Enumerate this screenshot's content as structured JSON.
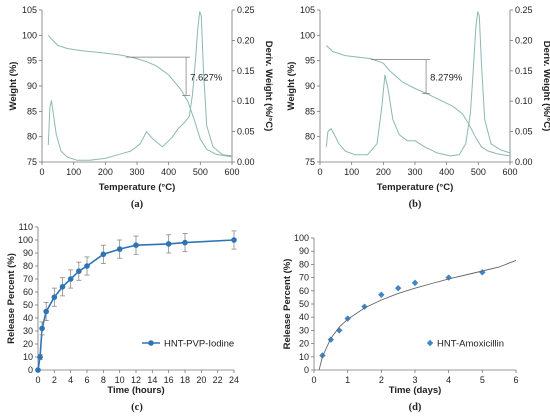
{
  "chart_data": [
    {
      "id": "a",
      "type": "line",
      "caption": "(a)",
      "xlabel": "Temperature (°C)",
      "ylabel": "Weight (%)",
      "y2label": "Deriv. Weight (%/°C)",
      "xlim": [
        0,
        600
      ],
      "ylim": [
        75,
        105
      ],
      "y2lim": [
        0,
        0.25
      ],
      "xticks": [
        "0",
        "100",
        "200",
        "300",
        "400",
        "500",
        "600"
      ],
      "yticks": [
        "75",
        "80",
        "85",
        "90",
        "95",
        "100",
        "105"
      ],
      "y2ticks": [
        "0.00",
        "0.05",
        "0.10",
        "0.15",
        "0.20",
        "0.25"
      ],
      "annotation": "7.627%",
      "annotation_range": [
        95.7,
        88.1
      ],
      "annotation_x": 455,
      "grid": false,
      "series": [
        {
          "axis": "left",
          "x": [
            20,
            30,
            50,
            80,
            120,
            150,
            200,
            250,
            300,
            330,
            360,
            400,
            440,
            460,
            480,
            500,
            520,
            550,
            600
          ],
          "y": [
            100.0,
            99.3,
            98.0,
            97.4,
            97.0,
            96.8,
            96.5,
            96.1,
            95.4,
            94.8,
            94.0,
            92.2,
            89.2,
            87.0,
            83.5,
            79.5,
            77.5,
            76.5,
            76.0
          ]
        },
        {
          "axis": "right",
          "x": [
            20,
            25,
            30,
            35,
            45,
            60,
            80,
            110,
            150,
            200,
            240,
            280,
            310,
            330,
            350,
            380,
            410,
            430,
            450,
            465,
            475,
            485,
            492,
            498,
            503,
            510,
            520,
            540,
            570,
            600
          ],
          "y": [
            0.028,
            0.09,
            0.101,
            0.082,
            0.045,
            0.018,
            0.008,
            0.003,
            0.003,
            0.006,
            0.012,
            0.018,
            0.03,
            0.05,
            0.038,
            0.025,
            0.04,
            0.055,
            0.065,
            0.075,
            0.11,
            0.17,
            0.22,
            0.247,
            0.24,
            0.15,
            0.06,
            0.025,
            0.012,
            0.01
          ]
        }
      ]
    },
    {
      "id": "b",
      "type": "line",
      "caption": "(b)",
      "xlabel": "Temperature (°C)",
      "ylabel": "Weight (%)",
      "y2label": "Deriv. Weight (%/°C)",
      "xlim": [
        0,
        600
      ],
      "ylim": [
        75,
        105
      ],
      "y2lim": [
        0,
        0.25
      ],
      "xticks": [
        "0",
        "100",
        "200",
        "300",
        "400",
        "500",
        "600"
      ],
      "yticks": [
        "75",
        "80",
        "85",
        "90",
        "95",
        "100",
        "105"
      ],
      "y2ticks": [
        "0.00",
        "0.05",
        "0.10",
        "0.15",
        "0.20",
        "0.25"
      ],
      "annotation": "8.279%",
      "annotation_range": [
        95.2,
        88.5
      ],
      "annotation_x": 335,
      "grid": false,
      "series": [
        {
          "axis": "left",
          "x": [
            20,
            40,
            80,
            120,
            160,
            200,
            220,
            260,
            300,
            340,
            380,
            420,
            450,
            470,
            490,
            510,
            530,
            560,
            600
          ],
          "y": [
            98.0,
            96.8,
            96.0,
            95.7,
            95.4,
            94.5,
            93.0,
            90.8,
            89.5,
            88.4,
            87.2,
            86.0,
            84.5,
            82.5,
            80.0,
            78.0,
            77.2,
            76.6,
            76.2
          ]
        },
        {
          "axis": "right",
          "x": [
            20,
            25,
            35,
            45,
            60,
            80,
            110,
            150,
            180,
            195,
            205,
            215,
            230,
            250,
            275,
            300,
            330,
            370,
            410,
            440,
            460,
            475,
            485,
            492,
            498,
            503,
            510,
            520,
            540,
            570,
            600
          ],
          "y": [
            0.025,
            0.05,
            0.055,
            0.045,
            0.03,
            0.018,
            0.012,
            0.012,
            0.03,
            0.09,
            0.143,
            0.12,
            0.07,
            0.045,
            0.035,
            0.035,
            0.025,
            0.015,
            0.01,
            0.012,
            0.03,
            0.08,
            0.16,
            0.22,
            0.247,
            0.24,
            0.16,
            0.07,
            0.03,
            0.02,
            0.015
          ]
        }
      ]
    },
    {
      "id": "c",
      "type": "line",
      "caption": "(c)",
      "xlabel": "Time (hours)",
      "ylabel": "Release Percent (%)",
      "xlim": [
        0,
        24
      ],
      "ylim": [
        0,
        110
      ],
      "xticks": [
        "0",
        "2",
        "4",
        "6",
        "8",
        "10",
        "12",
        "14",
        "16",
        "18",
        "20",
        "22",
        "24"
      ],
      "yticks": [
        "0",
        "10",
        "20",
        "30",
        "40",
        "50",
        "60",
        "70",
        "80",
        "90",
        "100",
        "110"
      ],
      "legend": "HNT-PVP-Iodine",
      "legend_position": "center-right",
      "grid": false,
      "series": [
        {
          "name": "HNT-PVP-Iodine",
          "x": [
            0,
            0.25,
            0.5,
            1,
            2,
            3,
            4,
            5,
            6,
            8,
            10,
            12,
            16,
            18,
            24
          ],
          "y": [
            0,
            10,
            32,
            45,
            56,
            64,
            70,
            76,
            80,
            89,
            93,
            96,
            97,
            98,
            100
          ],
          "err": [
            0,
            2,
            5,
            7,
            7,
            7,
            7,
            7,
            7,
            7,
            7,
            7,
            7,
            7,
            7
          ]
        }
      ]
    },
    {
      "id": "d",
      "type": "scatter",
      "caption": "(d)",
      "xlabel": "Time (days)",
      "ylabel": "Release Percent (%)",
      "xlim": [
        0,
        6
      ],
      "ylim": [
        0,
        100
      ],
      "xticks": [
        "0",
        "1",
        "2",
        "3",
        "4",
        "5",
        "6"
      ],
      "yticks": [
        "0",
        "10",
        "20",
        "30",
        "40",
        "50",
        "60",
        "70",
        "80",
        "90",
        "100"
      ],
      "legend": "HNT-Amoxicillin",
      "legend_position": "bottom-right",
      "grid": false,
      "series": [
        {
          "name": "HNT-Amoxicillin",
          "x": [
            0.25,
            0.5,
            0.75,
            1,
            1.5,
            2,
            2.5,
            3,
            4,
            5
          ],
          "y": [
            11,
            23,
            30,
            39,
            48,
            57,
            62,
            66,
            70,
            74
          ]
        }
      ],
      "trendline": {
        "x": [
          0.15,
          0.25,
          0.5,
          0.75,
          1,
          1.5,
          2,
          2.5,
          3,
          3.5,
          4,
          4.5,
          5,
          5.5,
          6
        ],
        "y": [
          0,
          10,
          24,
          32.5,
          38.5,
          47,
          53,
          58,
          62,
          65.5,
          69,
          72,
          75,
          78,
          83
        ]
      }
    }
  ]
}
